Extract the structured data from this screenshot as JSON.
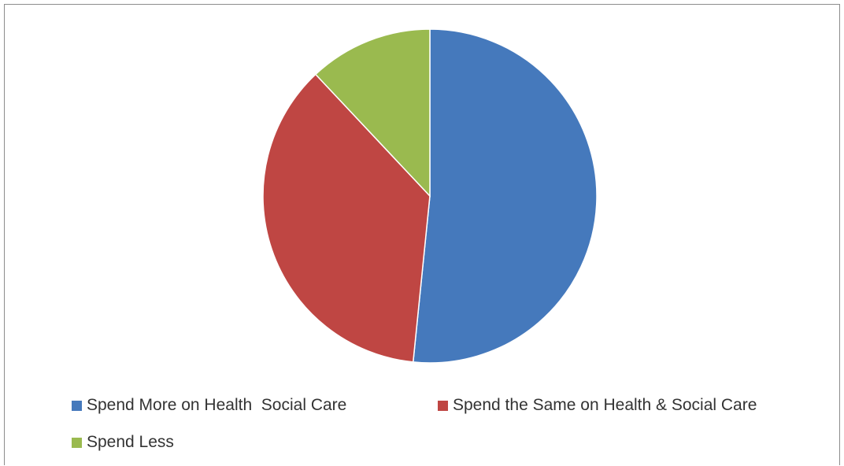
{
  "chart_data": {
    "type": "pie",
    "title": "",
    "legend_position": "bottom",
    "slices": [
      {
        "label": "Spend More on Health  Social Care",
        "value": 51.6,
        "color": "#4579bc"
      },
      {
        "label": "Spend the Same on Health & Social Care",
        "value": 36.4,
        "color": "#bf4643"
      },
      {
        "label": "Spend Less",
        "value": 12.0,
        "color": "#9aba4f"
      }
    ]
  }
}
